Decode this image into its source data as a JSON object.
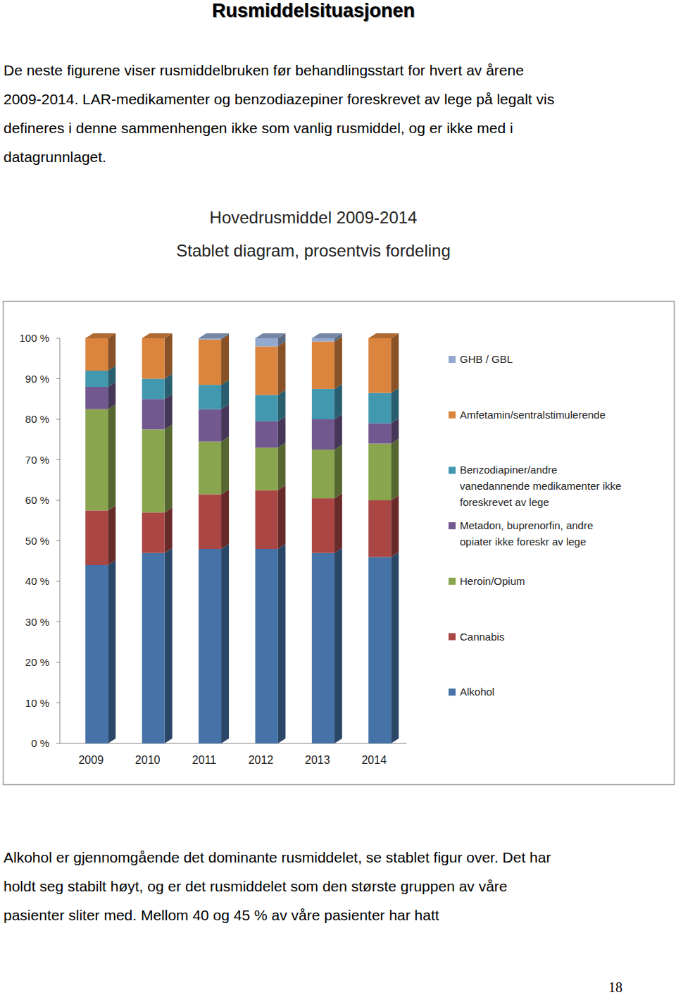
{
  "heading": "Rusmiddelsituasjonen",
  "intro": [
    "De neste figurene viser rusmiddelbruken før behandlingsstart for hvert av årene",
    "2009-2014. LAR-medikamenter og benzodiazepiner foreskrevet av lege på legalt vis",
    "defineres i denne sammenhengen ikke som vanlig rusmiddel, og er ikke med i",
    "datagrunnlaget."
  ],
  "chart_data": {
    "type": "bar",
    "stacked": true,
    "title": "Hovedrusmiddel 2009-2014",
    "subtitle": "Stablet diagram, prosentvis fordeling",
    "categories": [
      "2009",
      "2010",
      "2011",
      "2012",
      "2013",
      "2014"
    ],
    "series": [
      {
        "name": "Alkohol",
        "color": "#4572a7",
        "values": [
          44,
          47,
          48,
          48,
          47,
          46
        ]
      },
      {
        "name": "Cannabis",
        "color": "#aa4643",
        "values": [
          13.5,
          10,
          13.5,
          14.5,
          13.5,
          14
        ]
      },
      {
        "name": "Heroin/Opium",
        "color": "#89a54e",
        "values": [
          25,
          20.5,
          13,
          10.5,
          12,
          14
        ]
      },
      {
        "name": "Metadon, buprenorfin, andre opiater ikke foreskr av lege",
        "color": "#71588f",
        "values": [
          5.5,
          7.5,
          8,
          6.5,
          7.5,
          5
        ]
      },
      {
        "name": "Benzodiapiner/andre vanedannende medikamenter ikke foreskrevet av lege",
        "color": "#4198af",
        "values": [
          4,
          5,
          6,
          6.5,
          7.5,
          7.5
        ]
      },
      {
        "name": "Amfetamin/sentralstimulerende",
        "color": "#db843d",
        "values": [
          8,
          10,
          11.2,
          12,
          11.7,
          13.5
        ]
      },
      {
        "name": "GHB / GBL",
        "color": "#93a9cf",
        "values": [
          0,
          0,
          0.3,
          2,
          0.8,
          0
        ]
      }
    ],
    "ylim": [
      0,
      100
    ],
    "yticks": [
      {
        "value": 0,
        "label": "0 %"
      },
      {
        "value": 10,
        "label": "10 %"
      },
      {
        "value": 20,
        "label": "20 %"
      },
      {
        "value": 30,
        "label": "30 %"
      },
      {
        "value": 40,
        "label": "40 %"
      },
      {
        "value": 50,
        "label": "50 %"
      },
      {
        "value": 60,
        "label": "60 %"
      },
      {
        "value": 70,
        "label": "70 %"
      },
      {
        "value": 80,
        "label": "80 %"
      },
      {
        "value": 90,
        "label": "90 %"
      },
      {
        "value": 100,
        "label": "100 %"
      }
    ],
    "grid": false,
    "legend": "right"
  },
  "body": [
    "Alkohol er gjennomgående det dominante rusmiddelet, se stablet figur over. Det har",
    "holdt seg stabilt høyt, og er det rusmiddelet som den største gruppen av våre",
    "pasienter sliter med. Mellom 40 og 45 % av våre pasienter har hatt"
  ],
  "page_number": "18"
}
